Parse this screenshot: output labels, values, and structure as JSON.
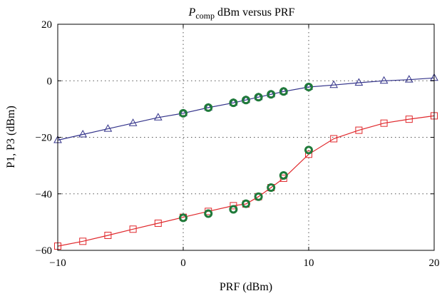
{
  "chart_data": {
    "type": "line",
    "title_main": "P",
    "title_sub": "comp",
    "title_rest": " dBm versus PRF",
    "xlabel": "PRF (dBm)",
    "ylabel": "P1, P3 (dBm)",
    "xlim": [
      -10,
      20
    ],
    "ylim": [
      -60,
      20
    ],
    "xticks": [
      -10,
      0,
      10,
      20
    ],
    "yticks": [
      -60,
      -40,
      -20,
      0,
      20
    ],
    "xtick_labels": [
      "−10",
      "0",
      "10",
      "20"
    ],
    "ytick_labels": [
      "−60",
      "−40",
      "−20",
      "0",
      "20"
    ],
    "grid": "dotted",
    "series": [
      {
        "color": "#33338a",
        "marker": "triangle",
        "x": [
          -10,
          -8,
          -6,
          -4,
          -2,
          0,
          2,
          4,
          5,
          6,
          7,
          8,
          10,
          12,
          14,
          16,
          18,
          20
        ],
        "y": [
          -21,
          -19,
          -17,
          -15,
          -13,
          -11.5,
          -9.5,
          -7.8,
          -6.8,
          -5.8,
          -4.8,
          -3.8,
          -2.2,
          -1.5,
          -0.7,
          0,
          0.4,
          1
        ]
      },
      {
        "color": "#e0282c",
        "marker": "square",
        "x": [
          -10,
          -8,
          -6,
          -4,
          -2,
          0,
          2,
          4,
          5,
          6,
          7,
          8,
          10,
          12,
          14,
          16,
          18,
          20
        ],
        "y": [
          -58.5,
          -56.8,
          -54.7,
          -52.5,
          -50.4,
          -48.3,
          -46.2,
          -44.2,
          -43.6,
          -41,
          -37.8,
          -34.5,
          -26,
          -20.5,
          -17.5,
          -15,
          -13.6,
          -12.4
        ]
      },
      {
        "color": "#1f7a3a",
        "marker": "circle",
        "line": false,
        "x": [
          0,
          2,
          4,
          5,
          6,
          7,
          8,
          10
        ],
        "y": [
          -11.5,
          -9.5,
          -7.8,
          -6.8,
          -5.8,
          -4.8,
          -3.8,
          -2.2
        ]
      },
      {
        "color": "#1f7a3a",
        "marker": "circle",
        "line": false,
        "x": [
          0,
          2,
          4,
          5,
          6,
          7,
          8,
          10
        ],
        "y": [
          -48.5,
          -47,
          -45.5,
          -43.5,
          -41,
          -37.8,
          -33.5,
          -24.5
        ]
      }
    ]
  }
}
